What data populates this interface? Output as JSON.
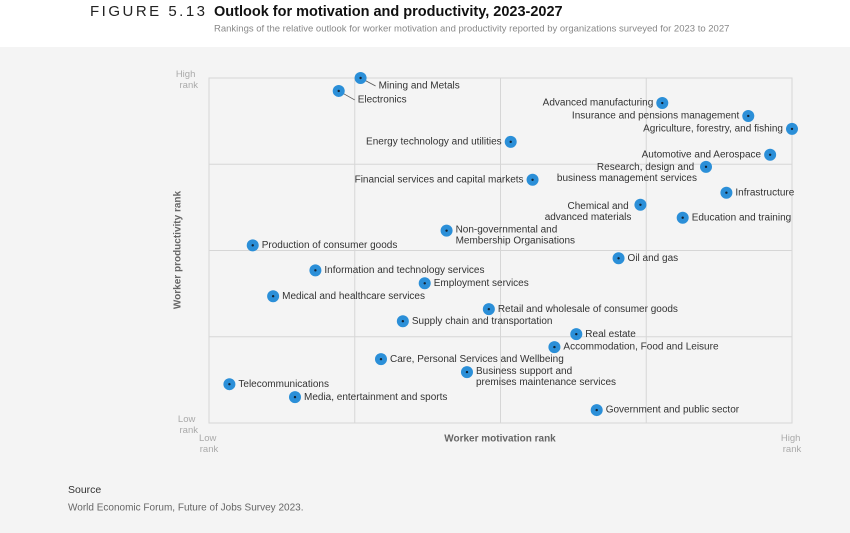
{
  "figure_label": "FIGURE 5.13",
  "chart_data": {
    "type": "scatter",
    "title": "Outlook for motivation and productivity, 2023-2027",
    "subtitle": "Rankings of the relative outlook for worker motivation and productivity reported by organizations surveyed for 2023 to 2027",
    "xlabel": "Worker motivation rank",
    "ylabel": "Worker productivity rank",
    "xlim": [
      0,
      4
    ],
    "ylim": [
      0,
      4
    ],
    "xticks": [
      {
        "value": 0,
        "label": "Low rank"
      },
      {
        "value": 4,
        "label": "High rank"
      }
    ],
    "yticks": [
      {
        "value": 0,
        "label": "Low rank"
      },
      {
        "value": 4,
        "label": "High rank"
      }
    ],
    "xgrid": [
      1,
      2,
      3
    ],
    "ygrid": [
      1,
      2,
      3
    ],
    "color": "#2b8fd8",
    "labels": [
      "Mining and Metals",
      "Electronics",
      "Advanced manufacturing",
      "Insurance and pensions management",
      "Agriculture, forestry, and fishing",
      "Energy technology and utilities",
      "Automotive and Aerospace",
      "Research, design and business management services",
      "Financial services and capital markets",
      "Infrastructure",
      "Chemical and advanced materials",
      "Education and training",
      "Non-governmental and Membership Organisations",
      "Production of consumer goods",
      "Oil and gas",
      "Information and technology services",
      "Employment services",
      "Medical and healthcare services",
      "Retail and wholesale of consumer goods",
      "Supply chain and transportation",
      "Real estate",
      "Accommodation, Food and Leisure",
      "Care, Personal Services and Wellbeing",
      "Business support and premises maintenance services",
      "Telecommunications",
      "Media, entertainment and sports",
      "Government and public sector"
    ],
    "x": [
      1.04,
      0.89,
      3.11,
      3.7,
      4.0,
      2.07,
      3.85,
      3.41,
      2.22,
      3.55,
      2.96,
      3.25,
      1.63,
      0.3,
      2.81,
      0.73,
      1.48,
      0.44,
      1.92,
      1.33,
      2.52,
      2.37,
      1.18,
      1.77,
      0.14,
      0.59,
      2.66
    ],
    "y": [
      4.0,
      3.85,
      3.71,
      3.56,
      3.41,
      3.26,
      3.11,
      2.97,
      2.82,
      2.67,
      2.53,
      2.38,
      2.23,
      2.06,
      1.91,
      1.77,
      1.62,
      1.47,
      1.32,
      1.18,
      1.03,
      0.88,
      0.74,
      0.59,
      0.45,
      0.3,
      0.15
    ]
  },
  "source": {
    "heading": "Source",
    "text": "World Economic Forum, Future of Jobs Survey 2023."
  }
}
